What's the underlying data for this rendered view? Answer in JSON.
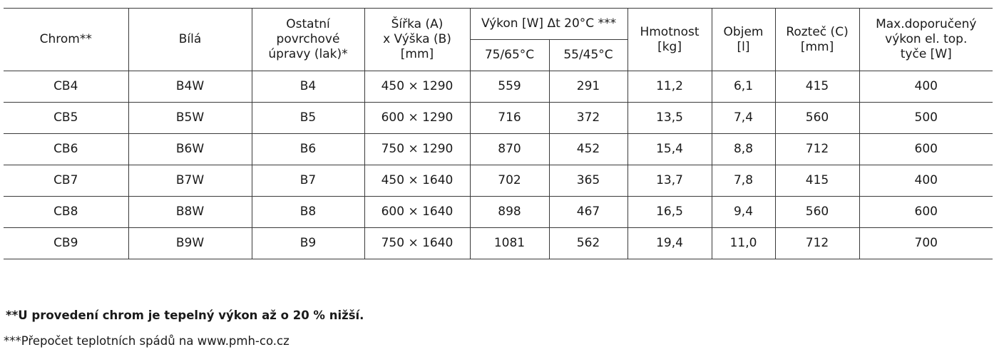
{
  "headers": {
    "chrom": "Chrom**",
    "bila": "Bílá",
    "ostatni": [
      "Ostatní",
      "povrchové",
      "úpravy (lak)*"
    ],
    "rozmer": [
      "Šířka (A)",
      "x Výška (B)",
      "[mm]"
    ],
    "vykon": "Výkon [W] Δt 20°C ***",
    "vykon_75": "75/65°C",
    "vykon_55": "55/45°C",
    "hmotnost": [
      "Hmotnost",
      "[kg]"
    ],
    "objem": [
      "Objem",
      "[l]"
    ],
    "roztec": [
      "Rozteč (C)",
      "[mm]"
    ],
    "max": [
      "Max.doporučený",
      "výkon el. top.",
      "tyče [W]"
    ]
  },
  "rows": [
    [
      "CB4",
      "B4W",
      "B4",
      "450 × 1290",
      "559",
      "291",
      "11,2",
      "6,1",
      "415",
      "400"
    ],
    [
      "CB5",
      "B5W",
      "B5",
      "600 × 1290",
      "716",
      "372",
      "13,5",
      "7,4",
      "560",
      "500"
    ],
    [
      "CB6",
      "B6W",
      "B6",
      "750 × 1290",
      "870",
      "452",
      "15,4",
      "8,8",
      "712",
      "600"
    ],
    [
      "CB7",
      "B7W",
      "B7",
      "450 × 1640",
      "702",
      "365",
      "13,7",
      "7,8",
      "415",
      "400"
    ],
    [
      "CB8",
      "B8W",
      "B8",
      "600 × 1640",
      "898",
      "467",
      "16,5",
      "9,4",
      "560",
      "600"
    ],
    [
      "CB9",
      "B9W",
      "B9",
      "750 × 1640",
      "1081",
      "562",
      "19,4",
      "11,0",
      "712",
      "700"
    ]
  ],
  "notes": {
    "chrom": "**U provedení chrom je tepelný výkon až o 20 % nižší.",
    "prepocet": "***Přepočet teplotních spádů na www.pmh-co.cz"
  }
}
